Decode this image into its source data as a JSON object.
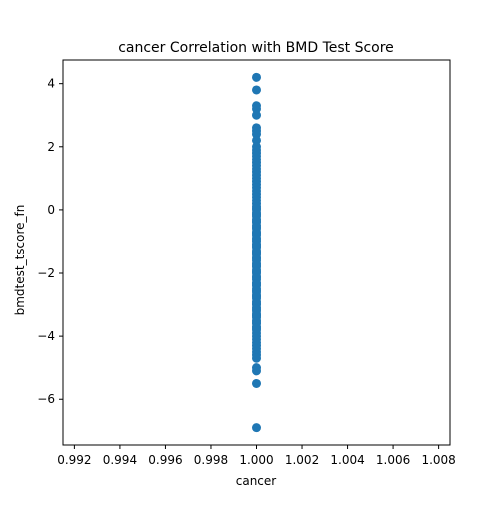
{
  "chart_data": {
    "type": "scatter",
    "title": "cancer Correlation with BMD Test Score",
    "xlabel": "cancer",
    "ylabel": "bmdtest_tscore_fn",
    "xlim": [
      0.9915,
      1.0085
    ],
    "ylim": [
      -7.45,
      4.75
    ],
    "xticks": [
      0.992,
      0.994,
      0.996,
      0.998,
      1.0,
      1.002,
      1.004,
      1.006,
      1.008
    ],
    "xtick_labels": [
      "0.992",
      "0.994",
      "0.996",
      "0.998",
      "1.000",
      "1.002",
      "1.004",
      "1.006",
      "1.008"
    ],
    "yticks": [
      -6,
      -4,
      -2,
      0,
      2,
      4
    ],
    "ytick_labels": [
      "−6",
      "−4",
      "−2",
      "0",
      "2",
      "4"
    ],
    "grid": false,
    "legend": false,
    "color": "#1f77b4",
    "series": [
      {
        "x": [
          1,
          1,
          1,
          1,
          1,
          1,
          1,
          1,
          1,
          1,
          1,
          1,
          1,
          1,
          1,
          1,
          1,
          1,
          1,
          1,
          1,
          1,
          1,
          1,
          1,
          1,
          1,
          1,
          1,
          1,
          1,
          1,
          1,
          1,
          1,
          1,
          1,
          1,
          1,
          1,
          1,
          1,
          1,
          1,
          1,
          1,
          1,
          1,
          1,
          1,
          1,
          1,
          1,
          1,
          1,
          1,
          1,
          1,
          1,
          1,
          1,
          1,
          1,
          1,
          1,
          1,
          1,
          1,
          1,
          1,
          1,
          1,
          1,
          1,
          1,
          1,
          1,
          1,
          1,
          1,
          1,
          1,
          1,
          1,
          1,
          1,
          1,
          1,
          1,
          1,
          1,
          1,
          1,
          1,
          1,
          1,
          1,
          1,
          1,
          1,
          1
        ],
        "y": [
          4.2,
          3.8,
          3.3,
          3.2,
          3.0,
          2.6,
          2.5,
          2.4,
          2.2,
          2.0,
          1.9,
          1.8,
          1.7,
          1.6,
          1.5,
          1.4,
          1.3,
          1.2,
          1.1,
          1.0,
          0.9,
          0.8,
          0.7,
          0.6,
          0.5,
          0.4,
          0.3,
          0.2,
          0.1,
          0.0,
          -0.1,
          -0.2,
          -0.3,
          -0.4,
          -0.5,
          -0.6,
          -0.7,
          -0.8,
          -0.9,
          -1.0,
          -1.1,
          -1.2,
          -1.3,
          -1.4,
          -1.5,
          -1.6,
          -1.7,
          -1.8,
          -1.9,
          -2.0,
          -2.1,
          -2.2,
          -2.3,
          -2.4,
          -2.5,
          -2.6,
          -2.7,
          -2.8,
          -2.9,
          -3.0,
          -3.1,
          -3.2,
          -3.3,
          -3.4,
          -3.5,
          -3.6,
          -3.7,
          -3.8,
          -3.9,
          -4.0,
          -4.1,
          -4.2,
          -4.3,
          -4.4,
          -4.5,
          -4.6,
          -4.7,
          -5.0,
          -5.1,
          -5.5,
          -6.9,
          0.05,
          -0.15,
          -0.35,
          -0.55,
          -0.75,
          -0.95,
          -1.15,
          -1.35,
          -1.55,
          -1.75,
          -1.95,
          -2.15,
          -2.35,
          -2.55,
          -2.75,
          -2.95,
          -3.15,
          -3.35,
          -3.55,
          -3.75
        ]
      }
    ]
  }
}
